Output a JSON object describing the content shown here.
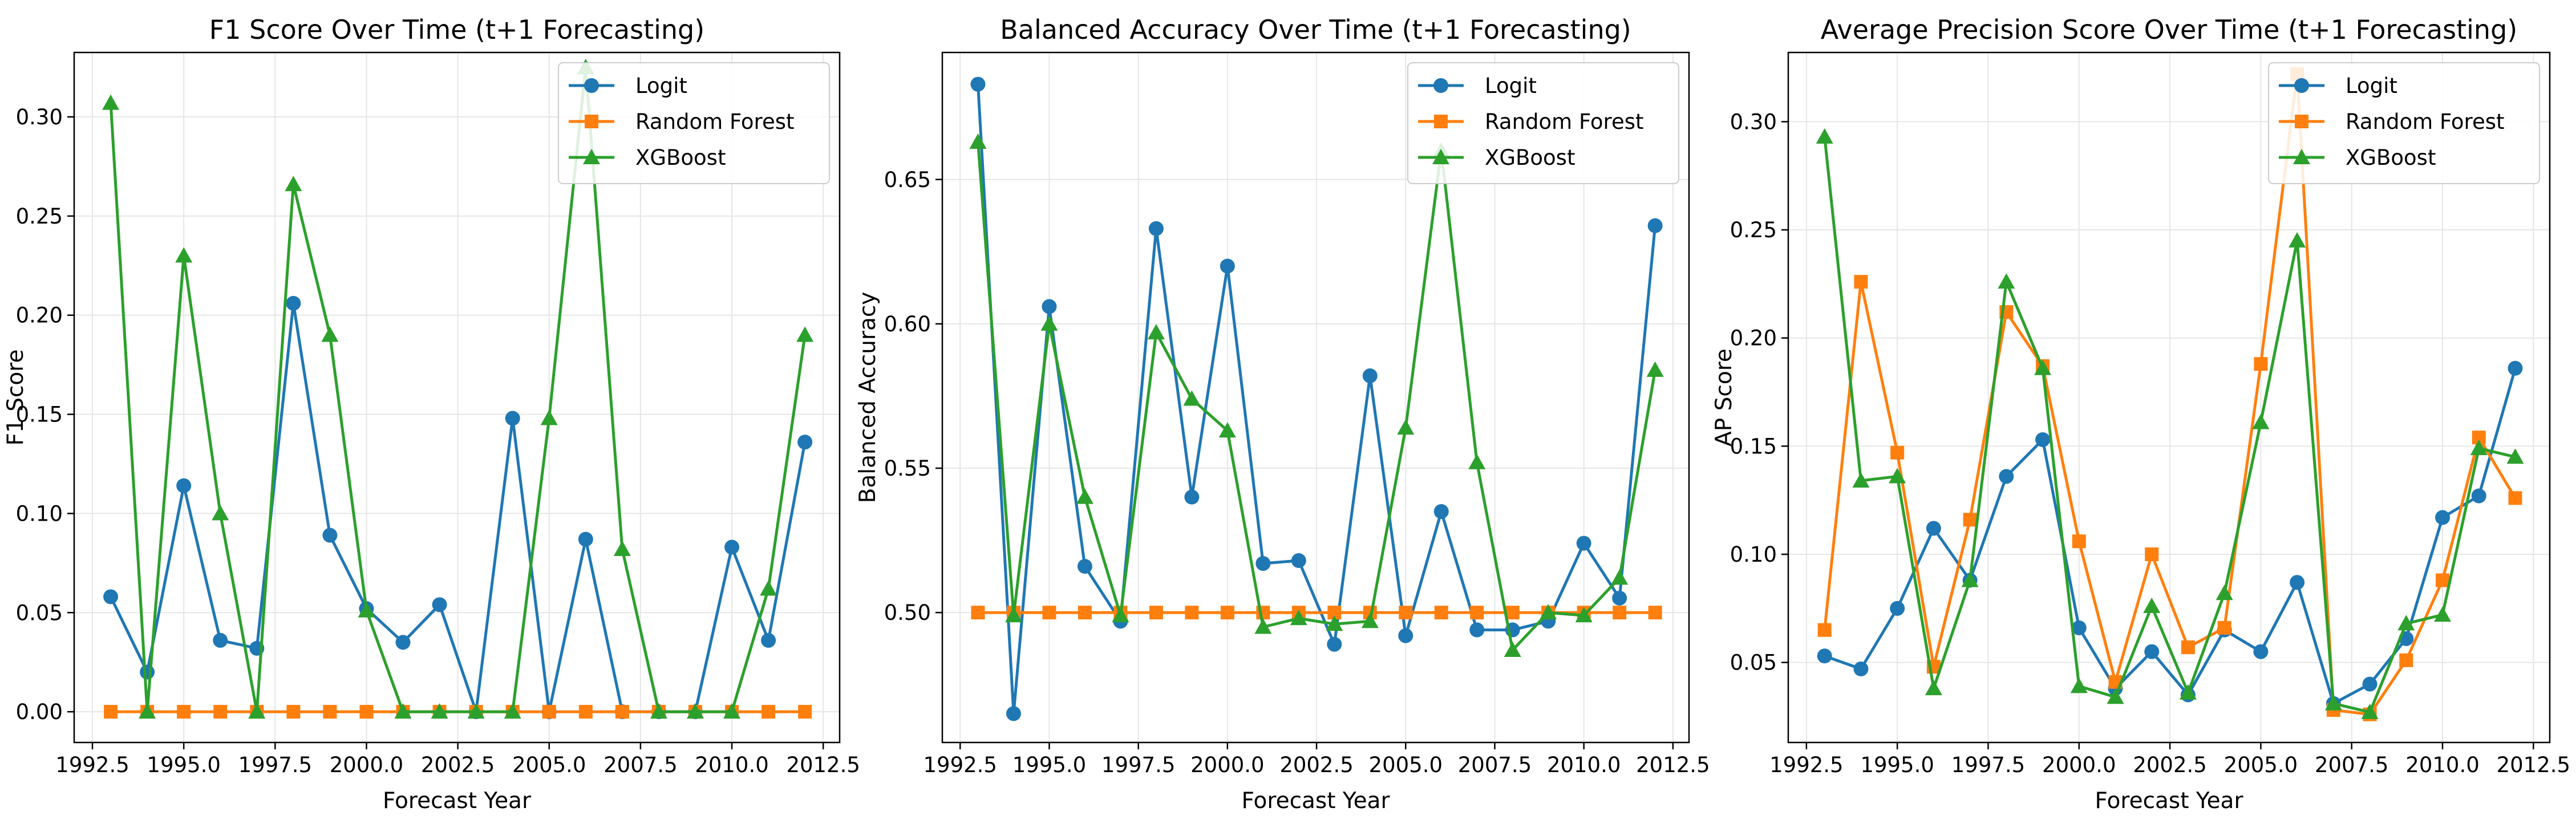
{
  "series_names": [
    "Logit",
    "Random Forest",
    "XGBoost"
  ],
  "colors": {
    "Logit": "#1f77b4",
    "Random Forest": "#ff7f0e",
    "XGBoost": "#2ca02c",
    "grid": "#e6e6e6",
    "axes": "#000000"
  },
  "markers": {
    "Logit": "circle",
    "Random Forest": "square",
    "XGBoost": "triangle-up"
  },
  "chart_data": [
    {
      "type": "line",
      "title": "F1 Score Over Time (t+1 Forecasting)",
      "xlabel": "Forecast Year",
      "ylabel": "F1 Score",
      "xlim": [
        1992.0,
        2012.95
      ],
      "ylim": [
        -0.0155,
        0.3325
      ],
      "xticks": [
        1992.5,
        1995.0,
        1997.5,
        2000.0,
        2002.5,
        2005.0,
        2007.5,
        2010.0,
        2012.5
      ],
      "xtick_labels": [
        "1992.5",
        "1995.0",
        "1997.5",
        "2000.0",
        "2002.5",
        "2005.0",
        "2007.5",
        "2010.0",
        "2012.5"
      ],
      "yticks": [
        0.0,
        0.05,
        0.1,
        0.15,
        0.2,
        0.25,
        0.3
      ],
      "ytick_labels": [
        "0.00",
        "0.05",
        "0.10",
        "0.15",
        "0.20",
        "0.25",
        "0.30"
      ],
      "grid": true,
      "legend": "upper right",
      "x": [
        1993,
        1994,
        1995,
        1996,
        1997,
        1998,
        1999,
        2000,
        2001,
        2002,
        2003,
        2004,
        2005,
        2006,
        2007,
        2008,
        2009,
        2010,
        2011,
        2012
      ],
      "series": [
        {
          "name": "Logit",
          "values": [
            0.058,
            0.02,
            0.114,
            0.036,
            0.032,
            0.206,
            0.089,
            0.052,
            0.035,
            0.054,
            0.0,
            0.148,
            0.0,
            0.087,
            0.0,
            0.0,
            0.0,
            0.083,
            0.036,
            0.136
          ]
        },
        {
          "name": "Random Forest",
          "values": [
            0,
            0,
            0,
            0,
            0,
            0,
            0,
            0,
            0,
            0,
            0,
            0,
            0,
            0,
            0,
            0,
            0,
            0,
            0,
            0
          ]
        },
        {
          "name": "XGBoost",
          "values": [
            0.307,
            0.0,
            0.23,
            0.1,
            0.0,
            0.266,
            0.19,
            0.051,
            0.0,
            0.0,
            0.0,
            0.0,
            0.148,
            0.325,
            0.082,
            0.0,
            0.0,
            0.0,
            0.062,
            0.19
          ]
        }
      ]
    },
    {
      "type": "line",
      "title": "Balanced Accuracy Over Time (t+1 Forecasting)",
      "xlabel": "Forecast Year",
      "ylabel": "Balanced Accuracy",
      "xlim": [
        1992.0,
        2012.95
      ],
      "ylim": [
        0.455,
        0.694
      ],
      "xticks": [
        1992.5,
        1995.0,
        1997.5,
        2000.0,
        2002.5,
        2005.0,
        2007.5,
        2010.0,
        2012.5
      ],
      "xtick_labels": [
        "1992.5",
        "1995.0",
        "1997.5",
        "2000.0",
        "2002.5",
        "2005.0",
        "2007.5",
        "2010.0",
        "2012.5"
      ],
      "yticks": [
        0.5,
        0.55,
        0.6,
        0.65
      ],
      "ytick_labels": [
        "0.50",
        "0.55",
        "0.60",
        "0.65"
      ],
      "grid": true,
      "legend": "upper right",
      "x": [
        1993,
        1994,
        1995,
        1996,
        1997,
        1998,
        1999,
        2000,
        2001,
        2002,
        2003,
        2004,
        2005,
        2006,
        2007,
        2008,
        2009,
        2010,
        2011,
        2012
      ],
      "series": [
        {
          "name": "Logit",
          "values": [
            0.683,
            0.465,
            0.606,
            0.516,
            0.497,
            0.633,
            0.54,
            0.62,
            0.517,
            0.518,
            0.489,
            0.582,
            0.492,
            0.535,
            0.494,
            0.494,
            0.497,
            0.524,
            0.505,
            0.634
          ]
        },
        {
          "name": "Random Forest",
          "values": [
            0.5,
            0.5,
            0.5,
            0.5,
            0.5,
            0.5,
            0.5,
            0.5,
            0.5,
            0.5,
            0.5,
            0.5,
            0.5,
            0.5,
            0.5,
            0.5,
            0.5,
            0.5,
            0.5,
            0.5
          ]
        },
        {
          "name": "XGBoost",
          "values": [
            0.663,
            0.499,
            0.6,
            0.54,
            0.499,
            0.597,
            0.574,
            0.563,
            0.495,
            0.498,
            0.496,
            0.497,
            0.564,
            0.66,
            0.552,
            0.487,
            0.5,
            0.499,
            0.512,
            0.584
          ]
        }
      ]
    },
    {
      "type": "line",
      "title": "Average Precision Score Over Time (t+1 Forecasting)",
      "xlabel": "Forecast Year",
      "ylabel": "AP Score",
      "xlim": [
        1992.0,
        2012.95
      ],
      "ylim": [
        0.013,
        0.332
      ],
      "xticks": [
        1992.5,
        1995.0,
        1997.5,
        2000.0,
        2002.5,
        2005.0,
        2007.5,
        2010.0,
        2012.5
      ],
      "xtick_labels": [
        "1992.5",
        "1995.0",
        "1997.5",
        "2000.0",
        "2002.5",
        "2005.0",
        "2007.5",
        "2010.0",
        "2012.5"
      ],
      "yticks": [
        0.05,
        0.1,
        0.15,
        0.2,
        0.25,
        0.3
      ],
      "ytick_labels": [
        "0.05",
        "0.10",
        "0.15",
        "0.20",
        "0.25",
        "0.30"
      ],
      "grid": true,
      "legend": "upper right",
      "x": [
        1993,
        1994,
        1995,
        1996,
        1997,
        1998,
        1999,
        2000,
        2001,
        2002,
        2003,
        2004,
        2005,
        2006,
        2007,
        2008,
        2009,
        2010,
        2011,
        2012
      ],
      "series": [
        {
          "name": "Logit",
          "values": [
            0.053,
            0.047,
            0.075,
            0.112,
            0.088,
            0.136,
            0.153,
            0.066,
            0.038,
            0.055,
            0.035,
            0.065,
            0.055,
            0.087,
            0.031,
            0.04,
            0.061,
            0.117,
            0.127,
            0.186
          ]
        },
        {
          "name": "Random Forest",
          "values": [
            0.065,
            0.226,
            0.147,
            0.048,
            0.116,
            0.212,
            0.187,
            0.106,
            0.041,
            0.1,
            0.057,
            0.066,
            0.188,
            0.322,
            0.028,
            0.026,
            0.051,
            0.088,
            0.154,
            0.126
          ]
        },
        {
          "name": "XGBoost",
          "values": [
            0.293,
            0.134,
            0.136,
            0.038,
            0.088,
            0.226,
            0.186,
            0.039,
            0.034,
            0.076,
            0.036,
            0.082,
            0.161,
            0.245,
            0.031,
            0.027,
            0.068,
            0.072,
            0.149,
            0.145
          ]
        }
      ]
    }
  ]
}
